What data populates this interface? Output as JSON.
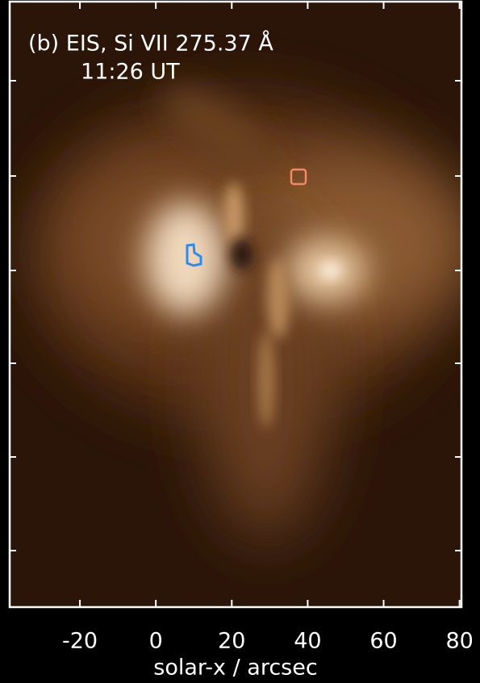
{
  "chart_data": {
    "type": "image",
    "title": "(b) EIS, Si VII 275.37 Å",
    "subtitle": "11:26 UT",
    "xlabel": "solar-x / arcsec",
    "xlim": [
      -38.5,
      80.5
    ],
    "xticks": [
      -20,
      0,
      20,
      40,
      60,
      80
    ]
  }
}
